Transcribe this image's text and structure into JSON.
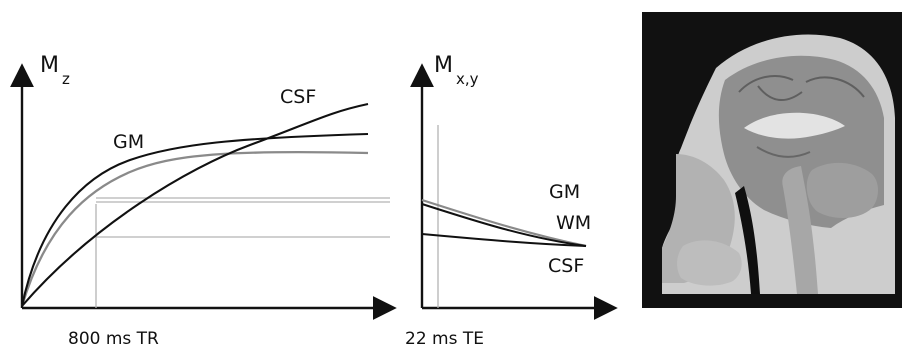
{
  "panel_a": {
    "axis_label_main": "M",
    "axis_label_sub": "z",
    "curve_labels": {
      "gm": "GM",
      "csf": "CSF"
    },
    "marker_label": "800 ms TR"
  },
  "panel_b": {
    "axis_label_main": "M",
    "axis_label_sub": "x,y",
    "curve_labels": {
      "gm": "GM",
      "wm": "WM",
      "csf": "CSF"
    },
    "marker_label": "22 ms TE"
  },
  "image": {
    "subject": "sagittal brain MRI"
  },
  "colors": {
    "axis": "#111111",
    "curve_dark": "#111111",
    "curve_gray": "#8a8a8a",
    "guide": "#b3b3b3",
    "mri_bg": "#111111"
  }
}
